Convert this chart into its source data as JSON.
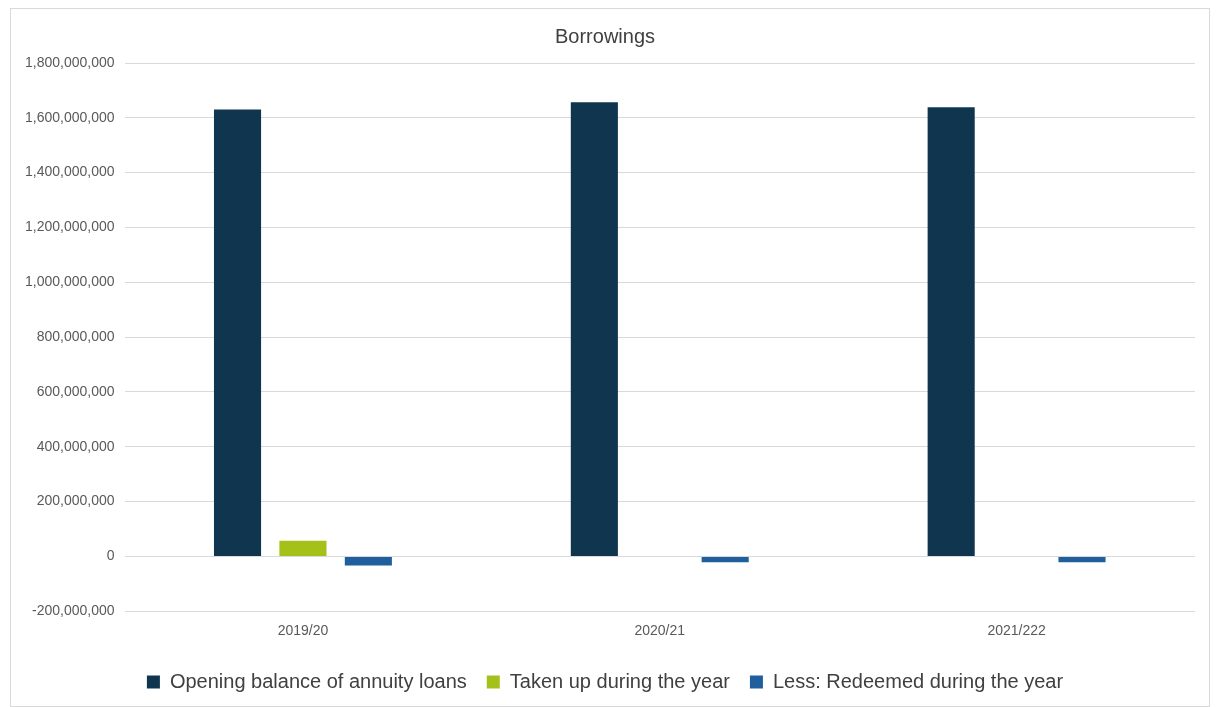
{
  "chart_data": {
    "type": "bar",
    "title": "Borrowings",
    "categories": [
      "2019/20",
      "2020/21",
      "2021/222"
    ],
    "series": [
      {
        "name": "Opening balance of annuity loans",
        "color": "#10364f",
        "values": [
          1630000000,
          1657000000,
          1639000000
        ]
      },
      {
        "name": "Taken up during the year",
        "color": "#a4c11a",
        "values": [
          57000000,
          null,
          null
        ]
      },
      {
        "name": "Less: Redeemed during the year",
        "color": "#1f5f9e",
        "values": [
          -33000000,
          -21000000,
          -21000000
        ]
      }
    ],
    "ylim": [
      -200000000,
      1800000000
    ],
    "yticks": [
      {
        "value": -200000000,
        "label": "-200,000,000"
      },
      0,
      {
        "value": 200000000,
        "label": "200,000,000"
      },
      {
        "value": 400000000,
        "label": "400,000,000"
      },
      {
        "value": 600000000,
        "label": "600,000,000"
      },
      {
        "value": 800000000,
        "label": "800,000,000"
      },
      {
        "value": 1000000000,
        "label": "1,000,000,000"
      },
      {
        "value": 1200000000,
        "label": "1,200,000,000"
      },
      {
        "value": 1400000000,
        "label": "1,400,000,000"
      },
      {
        "value": 1600000000,
        "label": "1,600,000,000"
      },
      {
        "value": 1800000000,
        "label": "1,800,000,000"
      }
    ],
    "grid": "y",
    "legend": "bottom"
  }
}
